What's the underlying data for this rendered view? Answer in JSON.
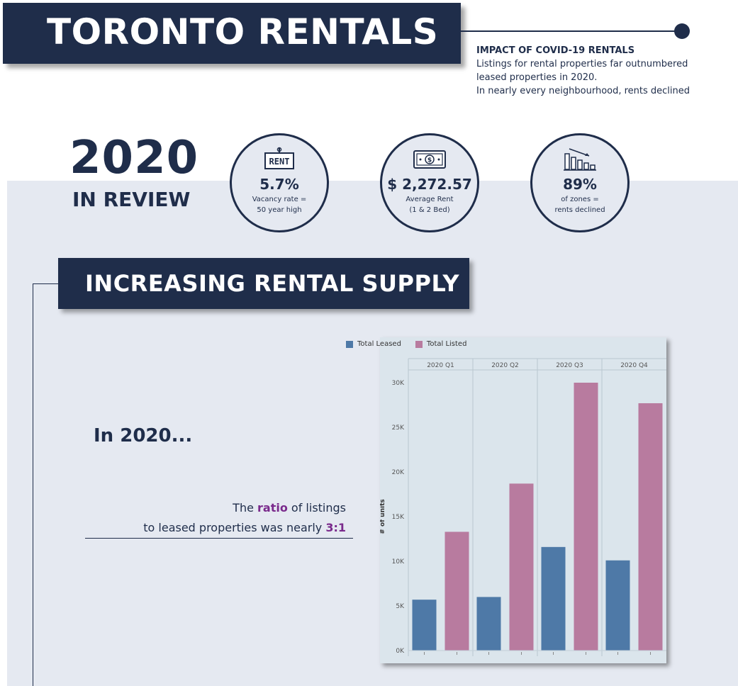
{
  "header": {
    "title": "TORONTO RENTALS",
    "intro_heading": "IMPACT OF COVID-19 RENTALS",
    "intro_lines": [
      "Listings for rental properties far outnumbered",
      "leased properties in 2020.",
      "In nearly every neighbourhood, rents declined"
    ]
  },
  "review": {
    "year": "2020",
    "label": "IN REVIEW",
    "stats": [
      {
        "icon": "rent-sign-icon",
        "value": "5.7%",
        "caption_1": "Vacancy rate =",
        "caption_2": "50 year high"
      },
      {
        "icon": "money-bill-icon",
        "value": "$ 2,272.57",
        "caption_1": "Average Rent",
        "caption_2": "(1 & 2 Bed)"
      },
      {
        "icon": "declining-bars-icon",
        "value": "89%",
        "caption_1": "of zones =",
        "caption_2": "rents declined"
      }
    ],
    "rent_sign_text": "RENT"
  },
  "section": {
    "title": "INCREASING RENTAL SUPPLY",
    "in_year": "In 2020...",
    "ratio_line_1_pre": "The ",
    "ratio_word": "ratio",
    "ratio_line_1_post": " of listings",
    "ratio_line_2_pre": "to leased properties was nearly ",
    "ratio_value": "3:1"
  },
  "colors": {
    "navy": "#1f2d4a",
    "leased": "#4e79a7",
    "listed": "#b87b9f",
    "accent": "#7a2a8c"
  },
  "chart_data": {
    "type": "bar",
    "categories": [
      "2020 Q1",
      "2020 Q2",
      "2020 Q3",
      "2020 Q4"
    ],
    "series": [
      {
        "name": "Total Leased",
        "values": [
          5700,
          6000,
          11600,
          10100
        ]
      },
      {
        "name": "Total Listed",
        "values": [
          13300,
          18700,
          30000,
          27700
        ]
      }
    ],
    "ylabel": "# of units",
    "ylim": [
      0,
      30000
    ],
    "yticks": [
      0,
      5000,
      10000,
      15000,
      20000,
      25000,
      30000
    ],
    "ytick_labels": [
      "0K",
      "5K",
      "10K",
      "15K",
      "20K",
      "25K",
      "30K"
    ],
    "legend": "top-left",
    "grid": false
  }
}
